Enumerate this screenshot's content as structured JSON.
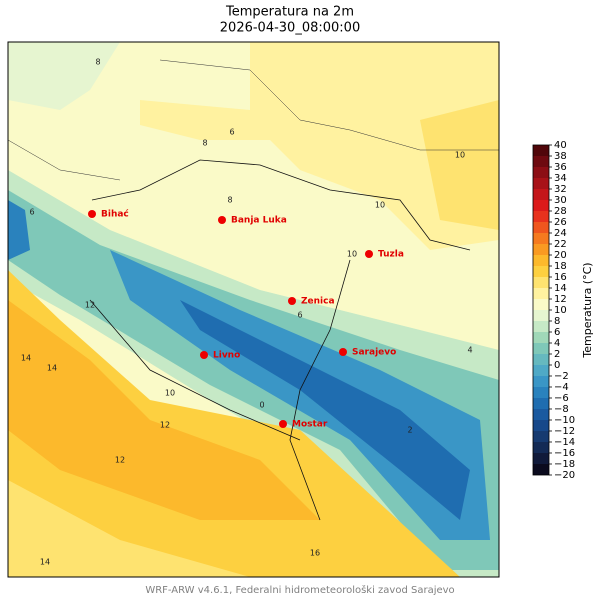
{
  "map": {
    "title": "Temperatura na 2m",
    "subtitle": "2026-04-30_08:00:00",
    "footer": "WRF-ARW v4.6.1, Federalni hidrometeorološki zavod Sarajevo",
    "cities": [
      "Bihać",
      "Banja Luka",
      "Tuzla",
      "Zenica",
      "Sarajevo",
      "Livno",
      "Mostar"
    ],
    "contour_labels": [
      "8",
      "8",
      "6",
      "8",
      "10",
      "10",
      "10",
      "6",
      "6",
      "12",
      "14",
      "14",
      "12",
      "16",
      "14",
      "0",
      "2",
      "4",
      "12",
      "10"
    ],
    "colorbar": {
      "label": "Temperatura (°C)",
      "lim": [
        -20,
        40
      ],
      "ticks": [
        {
          "value": -20,
          "label": "−20"
        },
        {
          "value": -18,
          "label": "−18"
        },
        {
          "value": -16,
          "label": "−16"
        },
        {
          "value": -14,
          "label": "−14"
        },
        {
          "value": -12,
          "label": "−12"
        },
        {
          "value": -10,
          "label": "−10"
        },
        {
          "value": -8,
          "label": "−8"
        },
        {
          "value": -6,
          "label": "−6"
        },
        {
          "value": -4,
          "label": "−4"
        },
        {
          "value": -2,
          "label": "−2"
        },
        0,
        2,
        4,
        6,
        8,
        10,
        12,
        14,
        16,
        18,
        20,
        22,
        24,
        26,
        28,
        30,
        32,
        34,
        36,
        38,
        40
      ],
      "colors": [
        "#0b0b1e",
        "#101a3a",
        "#132a55",
        "#163a70",
        "#17488a",
        "#1a5aa0",
        "#1f6db0",
        "#2a82bd",
        "#3a96c6",
        "#4fa9c6",
        "#66b9bf",
        "#7fc8b8",
        "#a0d8b8",
        "#c6e9c6",
        "#e6f5d0",
        "#fafac8",
        "#fff2a0",
        "#fee370",
        "#fdd040",
        "#fcb92c",
        "#f99a22",
        "#f57a1f",
        "#ef561e",
        "#e8321d",
        "#dc1a1a",
        "#c4161a",
        "#a81218",
        "#8c0e15",
        "#6e0a10",
        "#50060a"
      ]
    }
  }
}
